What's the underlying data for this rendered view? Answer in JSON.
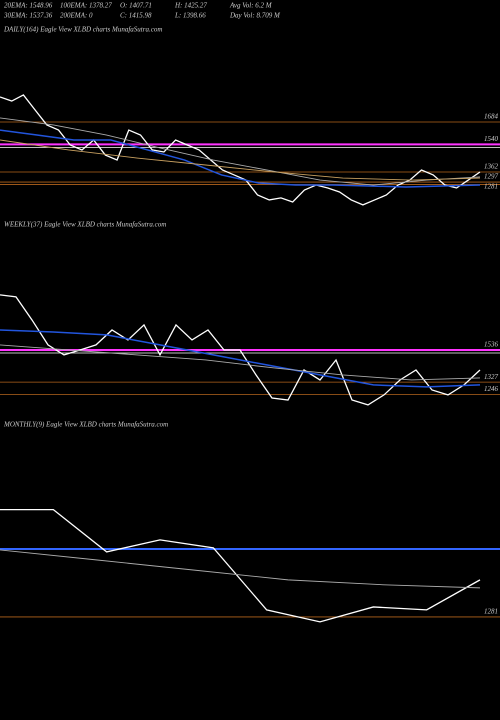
{
  "header": [
    [
      "20EMA: 1548.96",
      "100EMA: 1378.27",
      "O: 1407.71",
      "H: 1425.27",
      "Avg Vol: 6.2  M"
    ],
    [
      "30EMA: 1537.36",
      "200EMA: 0",
      "C: 1415.98",
      "L: 1398.66",
      "Day Vol: 8.709 M"
    ]
  ],
  "chart_data": [
    {
      "type": "line",
      "title": "DAILY(164) Eagle  View  XLBD charts MunafaSutra.com",
      "ylim": [
        1085,
        2212
      ],
      "levels": [
        1684,
        1540,
        1362,
        1297,
        1281
      ],
      "level_colors": [
        "#b5651d",
        "#ff33ff",
        "#b5651d",
        "#b5651d",
        "#b5651d"
      ],
      "series": [
        {
          "color": "#ffffff",
          "values": [
            1845,
            1819,
            1858,
            1761,
            1665,
            1632,
            1536,
            1504,
            1568,
            1471,
            1439,
            1632,
            1600,
            1504,
            1491,
            1568,
            1536,
            1504,
            1439,
            1375,
            1343,
            1310,
            1214,
            1182,
            1195,
            1169,
            1246,
            1278,
            1259,
            1233,
            1182,
            1150,
            1182,
            1214,
            1278,
            1310,
            1375,
            1343,
            1278,
            1259,
            1310,
            1362
          ]
        },
        {
          "color": "#2255dd",
          "values": [
            1632,
            1600,
            1568,
            1568,
            1504,
            1439,
            1343,
            1291,
            1278,
            1278,
            1272,
            1265,
            1272,
            1278
          ]
        },
        {
          "color": "#aaaaaa",
          "values": [
            1710,
            1665,
            1600,
            1517,
            1439,
            1375,
            1310,
            1278,
            1310,
            1330
          ]
        },
        {
          "color": "#c8a060",
          "values": [
            1568,
            1504,
            1452,
            1407,
            1362,
            1323,
            1310,
            1323
          ]
        }
      ]
    },
    {
      "type": "line",
      "title": "WEEKLY(37) Eagle  View  XLBD charts MunafaSutra.com",
      "ylim": [
        1146,
        2283
      ],
      "levels": [
        1536,
        1327,
        1246
      ],
      "level_colors": [
        "#ff33ff",
        "#b5651d",
        "#b5651d"
      ],
      "series": [
        {
          "color": "#ffffff",
          "values": [
            1894,
            1881,
            1731,
            1569,
            1504,
            1536,
            1569,
            1666,
            1601,
            1699,
            1504,
            1699,
            1601,
            1666,
            1536,
            1536,
            1374,
            1224,
            1211,
            1406,
            1341,
            1471,
            1211,
            1179,
            1244,
            1341,
            1406,
            1276,
            1244,
            1309,
            1406
          ]
        },
        {
          "color": "#2255dd",
          "values": [
            1666,
            1653,
            1634,
            1569,
            1504,
            1439,
            1374,
            1309,
            1296,
            1309
          ]
        },
        {
          "color": "#aaaaaa",
          "values": [
            1569,
            1536,
            1504,
            1471,
            1419,
            1374,
            1341,
            1354
          ]
        }
      ]
    },
    {
      "type": "line",
      "title": "MONTHLY(9) Eagle  View  XLBD charts MunafaSutra.com",
      "ylim": [
        871,
        2464
      ],
      "levels": [
        1723,
        1281
      ],
      "level_colors": [
        "#3366ff",
        "#b5651d"
      ],
      "level_labels": [
        false,
        true
      ],
      "series": [
        {
          "color": "#ffffff",
          "values": [
            1979,
            1979,
            1704,
            1782,
            1730,
            1327,
            1249,
            1346,
            1327,
            1522
          ]
        },
        {
          "color": "#aaaaaa",
          "values": [
            1717,
            1652,
            1587,
            1522,
            1490,
            1470
          ]
        }
      ]
    }
  ]
}
